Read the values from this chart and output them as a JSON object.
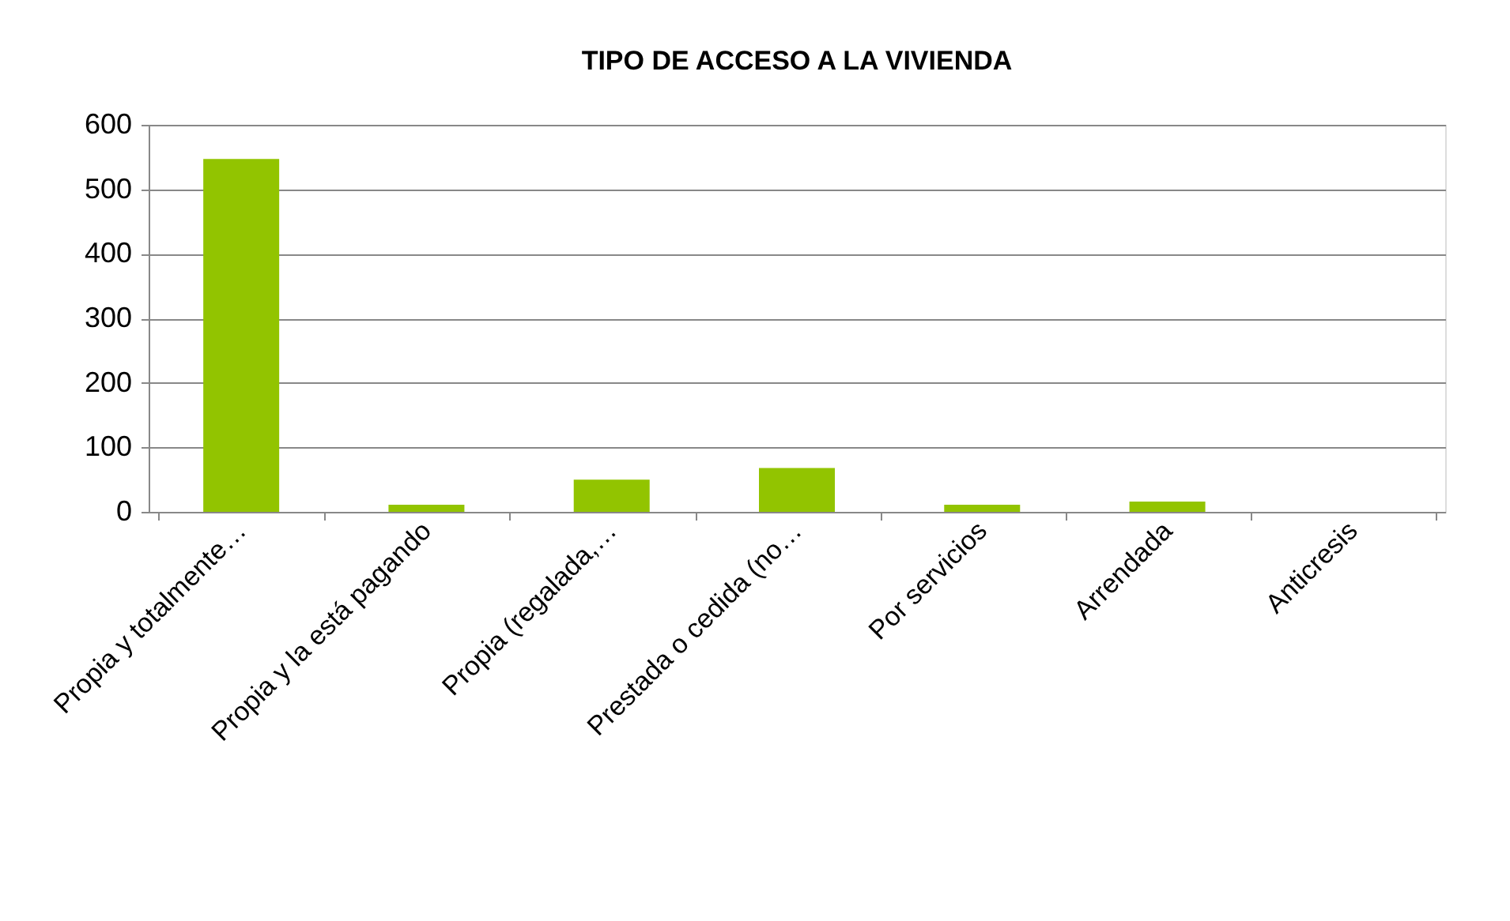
{
  "chart_data": {
    "type": "bar",
    "title": "TIPO DE ACCESO A LA VIVIENDA",
    "categories": [
      "Propia y totalmente…",
      "Propia y la está pagando",
      "Propia (regalada,…",
      "Prestada o cedida (no…",
      "Por servicios",
      "Arrendada",
      "Anticresis"
    ],
    "values": [
      547,
      11,
      50,
      68,
      11,
      16,
      0
    ],
    "color": "#92c400",
    "ylim": [
      0,
      600
    ],
    "yticks": [
      0,
      100,
      200,
      300,
      400,
      500,
      600
    ],
    "grid": "y"
  }
}
